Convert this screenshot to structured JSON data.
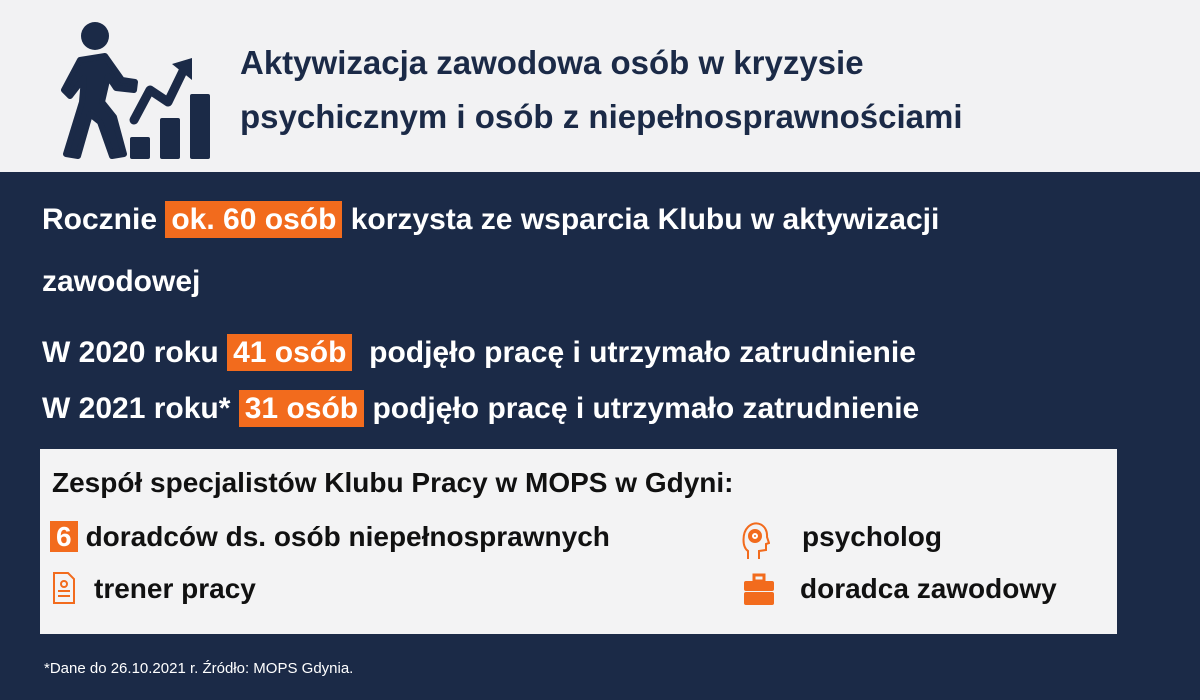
{
  "header": {
    "title_line1": "Aktywizacja  zawodowa osób w kryzysie",
    "title_line2": "psychicznym i osób z niepełnosprawnościami",
    "icon": "person-climbing-growth-chart-icon"
  },
  "stats": {
    "line1": {
      "before": "Rocznie ",
      "highlight": "ok. 60 osób",
      "after": " korzysta ze wsparcia Klubu w aktywizacji"
    },
    "line1b": "zawodowej",
    "line2": {
      "before": "W 2020 roku ",
      "highlight": "41 osób",
      "after": "  podjęło pracę i utrzymało zatrudnienie"
    },
    "line3": {
      "before": "W 2021 roku* ",
      "highlight": "31 osób",
      "after": " podjęło pracę i utrzymało zatrudnienie"
    }
  },
  "team": {
    "heading": "Zespół specjalistów Klubu Pracy w MOPS w Gdyni:",
    "advisors_count": "6",
    "advisors_label": "doradców ds. osób niepełnosprawnych",
    "psychologist": "psycholog",
    "trainer": "trener pracy",
    "career_advisor": "doradca zawodowy"
  },
  "footnote": "*Dane do 26.10.2021 r. Źródło: MOPS Gdynia.",
  "colors": {
    "navy": "#1b2a47",
    "orange": "#f26b1d",
    "light": "#f2f2f3"
  }
}
